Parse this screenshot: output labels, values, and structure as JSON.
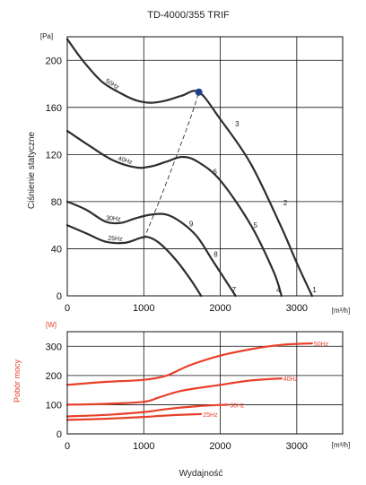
{
  "title": "TD-4000/355 TRIF",
  "xlabel": "Wydajność",
  "colors": {
    "pressure": "#2a2e33",
    "power": "#e8402a",
    "point": "#1f3f8f"
  },
  "chart_data": [
    {
      "type": "line",
      "ylabel": "Ciśnienie statyczne",
      "y_unit": "[Pa]",
      "x_unit": "[m³/h]",
      "xlim": [
        0,
        3600
      ],
      "ylim": [
        0,
        220
      ],
      "xticks": [
        "0",
        "1000",
        "2000",
        "3000"
      ],
      "xtick_values": [
        0,
        1000,
        2000,
        3000
      ],
      "yticks": [
        "0",
        "40",
        "80",
        "120",
        "160",
        "200"
      ],
      "ytick_values": [
        0,
        40,
        80,
        120,
        160,
        200
      ],
      "grid": true,
      "series": [
        {
          "name": "50Hz",
          "x": [
            0,
            200,
            450,
            700,
            900,
            1100,
            1300,
            1500,
            1720,
            2000,
            2400,
            2800,
            3000,
            3200
          ],
          "y": [
            218,
            200,
            182,
            172,
            166,
            164,
            166,
            170,
            173,
            150,
            112,
            58,
            28,
            0
          ]
        },
        {
          "name": "40Hz",
          "x": [
            0,
            300,
            600,
            900,
            1100,
            1300,
            1500,
            1700,
            2000,
            2400,
            2700,
            2800
          ],
          "y": [
            140,
            127,
            115,
            109,
            110,
            114,
            118,
            114,
            98,
            60,
            20,
            0
          ]
        },
        {
          "name": "30Hz",
          "x": [
            0,
            250,
            500,
            700,
            900,
            1100,
            1300,
            1500,
            1700,
            1900,
            2100,
            2200
          ],
          "y": [
            80,
            73,
            63,
            62,
            66,
            69,
            69,
            62,
            50,
            30,
            10,
            0
          ]
        },
        {
          "name": "25Hz",
          "x": [
            0,
            250,
            500,
            750,
            950,
            1050,
            1200,
            1400,
            1600,
            1750
          ],
          "y": [
            60,
            53,
            46,
            45,
            49,
            50,
            45,
            32,
            15,
            0
          ]
        }
      ],
      "system_curve": {
        "x": [
          1000,
          1200,
          1400,
          1600,
          1720
        ],
        "y": [
          48,
          80,
          114,
          149,
          173
        ]
      },
      "operating_point": {
        "x": 1720,
        "y": 173
      },
      "curve_markers": [
        {
          "label": "3",
          "x": 2220,
          "y": 144
        },
        {
          "label": "2",
          "x": 2850,
          "y": 77
        },
        {
          "label": "6",
          "x": 1930,
          "y": 103
        },
        {
          "label": "5",
          "x": 2460,
          "y": 58
        },
        {
          "label": "9",
          "x": 1620,
          "y": 59
        },
        {
          "label": "8",
          "x": 1940,
          "y": 33
        },
        {
          "label": "7",
          "x": 2180,
          "y": 3
        },
        {
          "label": "4",
          "x": 2760,
          "y": 3
        },
        {
          "label": "1",
          "x": 3230,
          "y": 3
        }
      ]
    },
    {
      "type": "line",
      "ylabel": "Pobór mocy",
      "y_unit": "[W]",
      "x_unit": "[m³/h]",
      "xlim": [
        0,
        3600
      ],
      "ylim": [
        0,
        350
      ],
      "xticks": [
        "0",
        "1000",
        "2000",
        "3000"
      ],
      "xtick_values": [
        0,
        1000,
        2000,
        3000
      ],
      "yticks": [
        "0",
        "100",
        "200",
        "300"
      ],
      "ytick_values": [
        0,
        100,
        200,
        300
      ],
      "grid": true,
      "series": [
        {
          "name": "50Hz",
          "x": [
            0,
            500,
            1000,
            1300,
            1600,
            2000,
            2400,
            2800,
            3200
          ],
          "y": [
            168,
            178,
            185,
            200,
            235,
            268,
            290,
            305,
            310
          ]
        },
        {
          "name": "40Hz",
          "x": [
            0,
            500,
            1000,
            1200,
            1500,
            2000,
            2400,
            2800
          ],
          "y": [
            100,
            103,
            110,
            125,
            148,
            168,
            183,
            190
          ]
        },
        {
          "name": "30Hz",
          "x": [
            0,
            500,
            1000,
            1300,
            1700,
            2100
          ],
          "y": [
            60,
            65,
            75,
            85,
            95,
            100
          ]
        },
        {
          "name": "25Hz",
          "x": [
            0,
            500,
            1000,
            1300,
            1750
          ],
          "y": [
            48,
            52,
            58,
            63,
            68
          ]
        }
      ]
    }
  ]
}
